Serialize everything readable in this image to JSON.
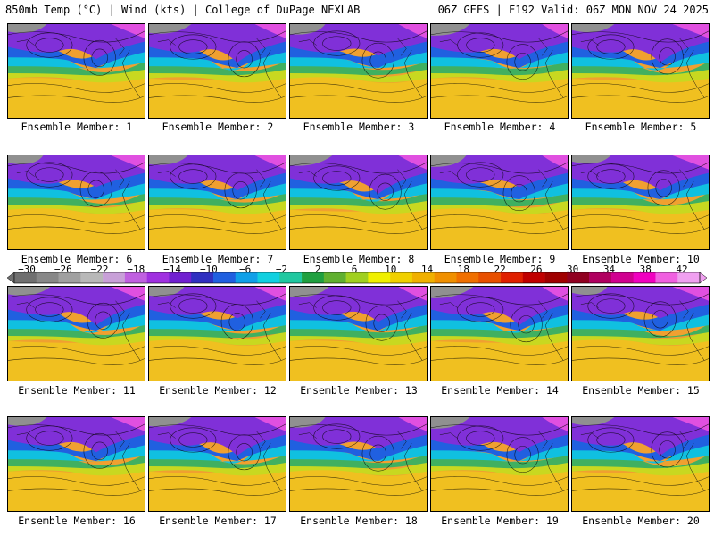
{
  "header": {
    "left": "850mb Temp (°C) | Wind (kts) | College of DuPage NEXLAB",
    "right": "06Z GEFS | F192 Valid: 06Z MON NOV 24 2025"
  },
  "colorbar": {
    "labels": [
      "−30",
      "−26",
      "−22",
      "−18",
      "−14",
      "−10",
      "−6",
      "−2",
      "2",
      "6",
      "10",
      "14",
      "18",
      "22",
      "26",
      "30",
      "34",
      "38",
      "42"
    ],
    "colors": [
      "#707070",
      "#888888",
      "#a0a0a0",
      "#b8b8b8",
      "#c8a0d8",
      "#c060e0",
      "#a030e0",
      "#7020d0",
      "#3030c0",
      "#2060e0",
      "#10a0e8",
      "#10d0e0",
      "#20c8a0",
      "#20a040",
      "#60b030",
      "#a0d020",
      "#f0f000",
      "#f0d000",
      "#f0b000",
      "#f09000",
      "#f07000",
      "#e85000",
      "#e02000",
      "#c00000",
      "#a00000",
      "#900020",
      "#b00060",
      "#d00090",
      "#f000c0",
      "#f060e0",
      "#f0a0f0"
    ]
  },
  "members": [
    {
      "label": "Ensemble Member: 1"
    },
    {
      "label": "Ensemble Member: 2"
    },
    {
      "label": "Ensemble Member: 3"
    },
    {
      "label": "Ensemble Member: 4"
    },
    {
      "label": "Ensemble Member: 5"
    },
    {
      "label": "Ensemble Member: 6"
    },
    {
      "label": "Ensemble Member: 7"
    },
    {
      "label": "Ensemble Member: 8"
    },
    {
      "label": "Ensemble Member: 9"
    },
    {
      "label": "Ensemble Member: 10"
    },
    {
      "label": "Ensemble Member: 11"
    },
    {
      "label": "Ensemble Member: 12"
    },
    {
      "label": "Ensemble Member: 13"
    },
    {
      "label": "Ensemble Member: 14"
    },
    {
      "label": "Ensemble Member: 15"
    },
    {
      "label": "Ensemble Member: 16"
    },
    {
      "label": "Ensemble Member: 17"
    },
    {
      "label": "Ensemble Member: 18"
    },
    {
      "label": "Ensemble Member: 19"
    },
    {
      "label": "Ensemble Member: 20"
    }
  ]
}
